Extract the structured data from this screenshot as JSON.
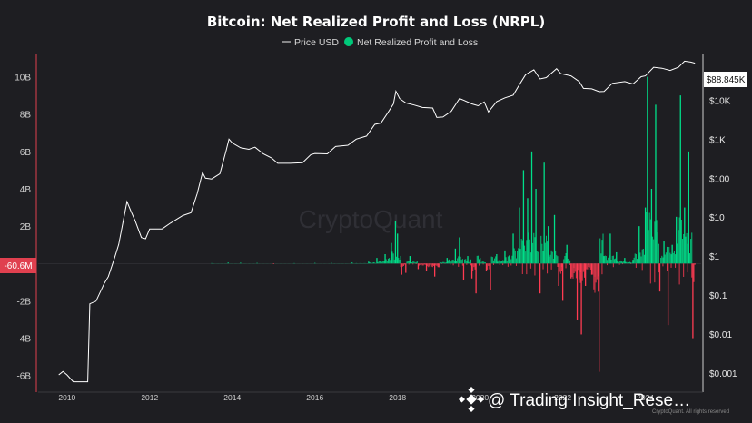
{
  "chart_data": {
    "type": "area",
    "title": "Bitcoin: Net Realized Profit and Loss (NRPL)",
    "xlabel": "",
    "ylabel": "",
    "x_ticks": [
      "2010",
      "2012",
      "2014",
      "2016",
      "2018",
      "2020",
      "2022",
      "2024"
    ],
    "left_axis": {
      "ticks": [
        "10B",
        "8B",
        "6B",
        "4B",
        "2B",
        "-2B",
        "-4B",
        "-6B"
      ],
      "range": [
        -6.5,
        11.0
      ],
      "current_label": "-60.6M"
    },
    "right_axis": {
      "scale": "log",
      "ticks": [
        "$10K",
        "$1K",
        "$100",
        "$10",
        "$1",
        "$0.1",
        "$0.01",
        "$0.001"
      ],
      "range": [
        0.0005,
        120000
      ],
      "current_label": "$88.845K"
    },
    "legend": {
      "placement": "top-center",
      "line_label": "Price USD",
      "dot_label": "Net Realized Profit and Loss"
    },
    "series": [
      {
        "name": "Price USD",
        "axis": "right",
        "color": "#ffffff",
        "points": [
          [
            2009.8,
            0.0009
          ],
          [
            2009.9,
            0.0011
          ],
          [
            2010.0,
            0.0009
          ],
          [
            2010.15,
            0.0006
          ],
          [
            2010.5,
            0.0006
          ],
          [
            2010.55,
            0.06
          ],
          [
            2010.7,
            0.07
          ],
          [
            2010.9,
            0.2
          ],
          [
            2011.0,
            0.3
          ],
          [
            2011.15,
            0.9
          ],
          [
            2011.25,
            2
          ],
          [
            2011.35,
            7
          ],
          [
            2011.45,
            25
          ],
          [
            2011.55,
            14
          ],
          [
            2011.65,
            8
          ],
          [
            2011.8,
            3
          ],
          [
            2011.9,
            2.8
          ],
          [
            2012.0,
            5
          ],
          [
            2012.3,
            5
          ],
          [
            2012.5,
            7
          ],
          [
            2012.8,
            11
          ],
          [
            2013.0,
            13
          ],
          [
            2013.15,
            40
          ],
          [
            2013.28,
            140
          ],
          [
            2013.35,
            100
          ],
          [
            2013.5,
            95
          ],
          [
            2013.7,
            130
          ],
          [
            2013.85,
            500
          ],
          [
            2013.92,
            1000
          ],
          [
            2014.0,
            800
          ],
          [
            2014.2,
            600
          ],
          [
            2014.4,
            550
          ],
          [
            2014.55,
            620
          ],
          [
            2014.75,
            420
          ],
          [
            2014.95,
            330
          ],
          [
            2015.1,
            240
          ],
          [
            2015.4,
            240
          ],
          [
            2015.7,
            250
          ],
          [
            2015.9,
            400
          ],
          [
            2016.0,
            430
          ],
          [
            2016.3,
            420
          ],
          [
            2016.5,
            650
          ],
          [
            2016.8,
            700
          ],
          [
            2017.0,
            1000
          ],
          [
            2017.25,
            1200
          ],
          [
            2017.45,
            2400
          ],
          [
            2017.6,
            2600
          ],
          [
            2017.75,
            4500
          ],
          [
            2017.9,
            8000
          ],
          [
            2017.96,
            17000
          ],
          [
            2018.05,
            11000
          ],
          [
            2018.2,
            8500
          ],
          [
            2018.4,
            7500
          ],
          [
            2018.6,
            6500
          ],
          [
            2018.85,
            6300
          ],
          [
            2018.95,
            3600
          ],
          [
            2019.1,
            3700
          ],
          [
            2019.3,
            5200
          ],
          [
            2019.5,
            11000
          ],
          [
            2019.6,
            10000
          ],
          [
            2019.8,
            8000
          ],
          [
            2019.95,
            7200
          ],
          [
            2020.1,
            9000
          ],
          [
            2020.2,
            5000
          ],
          [
            2020.4,
            9200
          ],
          [
            2020.6,
            11500
          ],
          [
            2020.8,
            13500
          ],
          [
            2020.95,
            25000
          ],
          [
            2021.1,
            45000
          ],
          [
            2021.3,
            60000
          ],
          [
            2021.45,
            35000
          ],
          [
            2021.6,
            38000
          ],
          [
            2021.85,
            64000
          ],
          [
            2021.95,
            48000
          ],
          [
            2022.2,
            42000
          ],
          [
            2022.4,
            30000
          ],
          [
            2022.5,
            20000
          ],
          [
            2022.7,
            19500
          ],
          [
            2022.88,
            16500
          ],
          [
            2023.0,
            16800
          ],
          [
            2023.2,
            27000
          ],
          [
            2023.5,
            30000
          ],
          [
            2023.7,
            26000
          ],
          [
            2023.9,
            40000
          ],
          [
            2024.0,
            42000
          ],
          [
            2024.2,
            70000
          ],
          [
            2024.4,
            66000
          ],
          [
            2024.6,
            58000
          ],
          [
            2024.8,
            70000
          ],
          [
            2024.95,
            100000
          ],
          [
            2025.1,
            95000
          ],
          [
            2025.2,
            88845
          ]
        ]
      },
      {
        "name": "Net Realized Profit and Loss",
        "axis": "left",
        "color": "#00e08a",
        "negative_color": "#ff3b52",
        "points": [
          [
            2013.5,
            0.02
          ],
          [
            2013.9,
            0.05
          ],
          [
            2014.2,
            0.04
          ],
          [
            2014.6,
            0.03
          ],
          [
            2015.0,
            -0.03
          ],
          [
            2015.5,
            0.02
          ],
          [
            2016.0,
            0.03
          ],
          [
            2016.4,
            0.03
          ],
          [
            2016.9,
            0.05
          ],
          [
            2017.3,
            0.1
          ],
          [
            2017.5,
            0.3
          ],
          [
            2017.7,
            0.5
          ],
          [
            2017.85,
            1.1
          ],
          [
            2017.95,
            2.3
          ],
          [
            2018.0,
            1.6
          ],
          [
            2018.1,
            -0.6
          ],
          [
            2018.2,
            -0.5
          ],
          [
            2018.3,
            0.4
          ],
          [
            2018.5,
            -0.3
          ],
          [
            2018.7,
            -0.4
          ],
          [
            2018.9,
            -0.7
          ],
          [
            2019.0,
            -0.2
          ],
          [
            2019.2,
            0.3
          ],
          [
            2019.4,
            0.8
          ],
          [
            2019.5,
            1.4
          ],
          [
            2019.6,
            -0.9
          ],
          [
            2019.7,
            0.4
          ],
          [
            2019.8,
            -0.8
          ],
          [
            2019.9,
            -1.6
          ],
          [
            2020.0,
            0.3
          ],
          [
            2020.15,
            -0.4
          ],
          [
            2020.25,
            -1.4
          ],
          [
            2020.4,
            0.5
          ],
          [
            2020.6,
            0.7
          ],
          [
            2020.8,
            1.6
          ],
          [
            2020.95,
            3.0
          ],
          [
            2021.05,
            5.0
          ],
          [
            2021.15,
            3.5
          ],
          [
            2021.25,
            6.0
          ],
          [
            2021.35,
            4.0
          ],
          [
            2021.45,
            -1.6
          ],
          [
            2021.55,
            5.4
          ],
          [
            2021.65,
            2.0
          ],
          [
            2021.8,
            2.6
          ],
          [
            2021.9,
            -1.2
          ],
          [
            2022.0,
            -2.0
          ],
          [
            2022.1,
            1.0
          ],
          [
            2022.2,
            -0.8
          ],
          [
            2022.35,
            -3.0
          ],
          [
            2022.45,
            -3.8
          ],
          [
            2022.55,
            -1.2
          ],
          [
            2022.7,
            -0.6
          ],
          [
            2022.88,
            -5.8
          ],
          [
            2023.0,
            0.4
          ],
          [
            2023.15,
            1.6
          ],
          [
            2023.3,
            0.6
          ],
          [
            2023.5,
            0.3
          ],
          [
            2023.7,
            0.2
          ],
          [
            2023.85,
            2.0
          ],
          [
            2024.0,
            3.0
          ],
          [
            2024.05,
            10.0
          ],
          [
            2024.15,
            4.0
          ],
          [
            2024.25,
            8.5
          ],
          [
            2024.35,
            -1.5
          ],
          [
            2024.45,
            1.2
          ],
          [
            2024.55,
            -3.3
          ],
          [
            2024.65,
            1.0
          ],
          [
            2024.75,
            2.5
          ],
          [
            2024.85,
            9.0
          ],
          [
            2024.95,
            3.0
          ],
          [
            2025.05,
            6.0
          ],
          [
            2025.15,
            -4.0
          ],
          [
            2025.2,
            -0.06
          ]
        ]
      }
    ]
  },
  "watermark": "CryptoQuant",
  "footer": {
    "brand_handle": "@ Trading Insight_Rese…",
    "copyright": "CryptoQuant. All rights reserved"
  }
}
